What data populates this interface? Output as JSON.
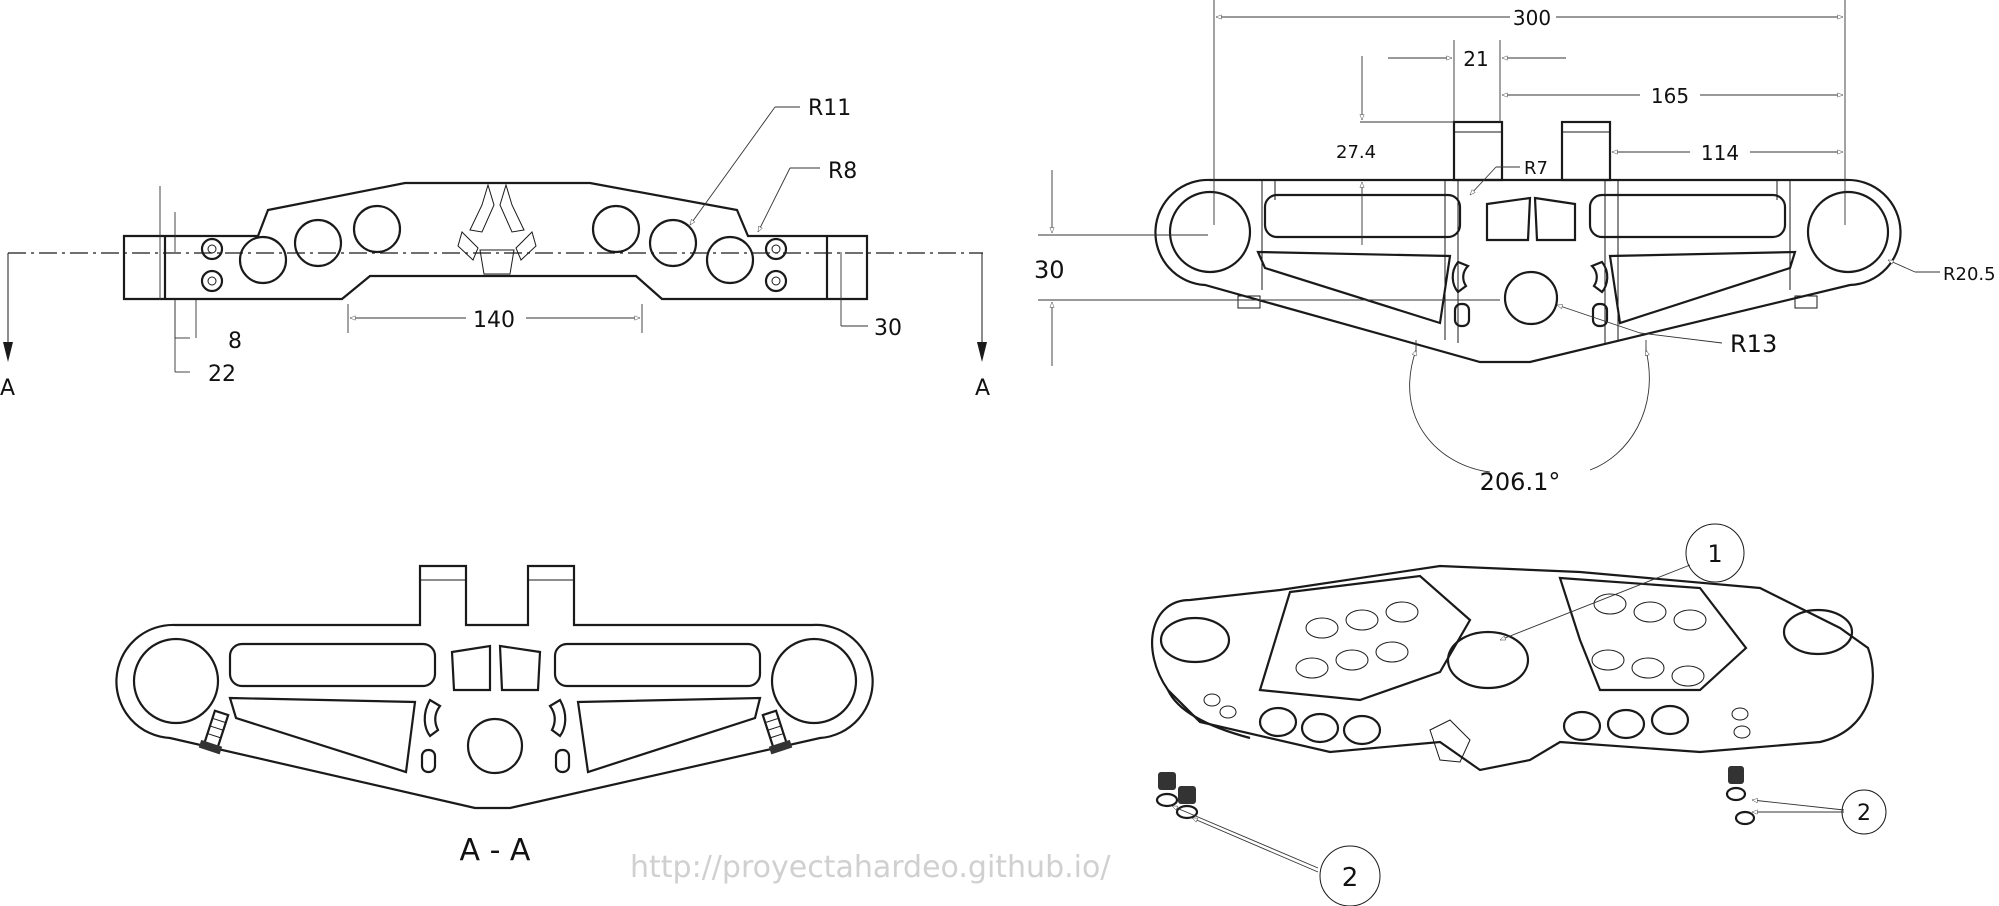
{
  "dimensions": {
    "top_view": {
      "r11": "R11",
      "r8": "R8",
      "d140": "140",
      "d8": "8",
      "d22": "22",
      "d30": "30",
      "section_left": "A",
      "section_right": "A"
    },
    "front_view": {
      "d300": "300",
      "d21": "21",
      "d165": "165",
      "d27_4": "27.4",
      "r7": "R7",
      "d114": "114",
      "d30": "30",
      "r20_5": "R20.5",
      "r13": "R13",
      "angle": "206.1°"
    }
  },
  "section_label": "A - A",
  "balloons": {
    "b1": "1",
    "b2_right": "2",
    "b2_bottom": "2"
  },
  "watermark": "http://proyectahardeo.github.io/",
  "colors": {
    "line": "#1a1a1a",
    "watermark": "#d0d0d0"
  }
}
